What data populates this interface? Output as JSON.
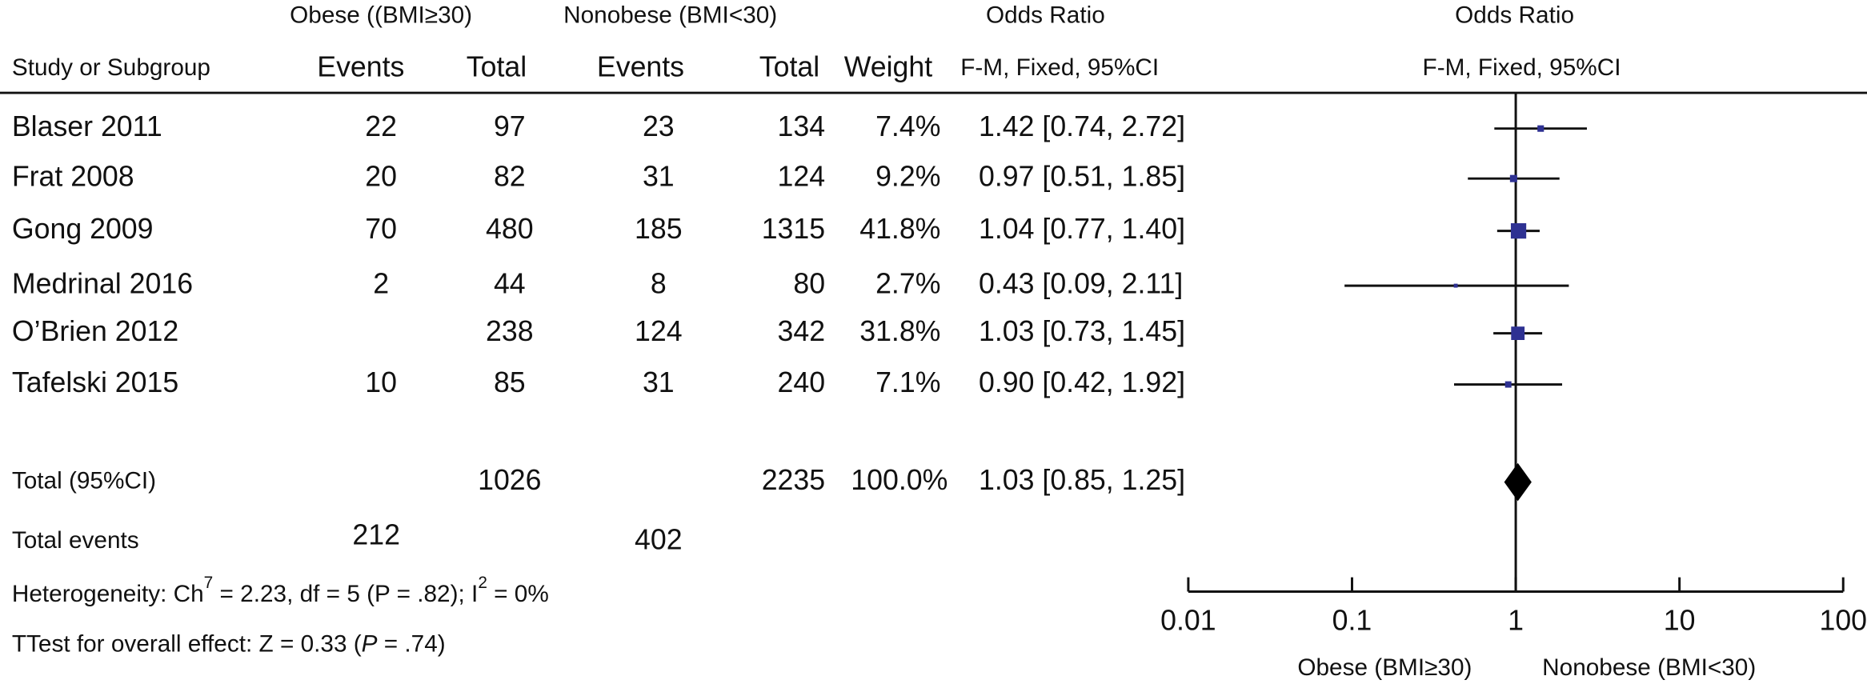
{
  "chart_data": {
    "type": "forest",
    "header": {
      "group1": "Obese ((BMI≥30)",
      "group2": "Nonobese (BMI<30)",
      "or_title": "Odds Ratio",
      "plot_title": "Odds Ratio",
      "study_col": "Study or Subgroup",
      "events1": "Events",
      "total1": "Total",
      "events2": "Events",
      "total2": "Total",
      "weight": "Weight",
      "method": "F-M, Fixed, 95%CI",
      "plot_method": "F-M, Fixed, 95%CI"
    },
    "categories": [
      "Blaser 2011",
      "Frat 2008",
      "Gong 2009",
      "Medrinal 2016",
      "O’Brien 2012",
      "Tafelski 2015"
    ],
    "events1": [
      22,
      20,
      70,
      2,
      null,
      10
    ],
    "total1": [
      97,
      82,
      480,
      44,
      238,
      85
    ],
    "events2": [
      23,
      31,
      185,
      8,
      124,
      31
    ],
    "total2": [
      134,
      124,
      1315,
      80,
      342,
      240
    ],
    "weights": [
      7.4,
      9.2,
      41.8,
      2.7,
      31.8,
      7.1
    ],
    "weight_labels": [
      "7.4%",
      "9.2%",
      "41.8%",
      "2.7%",
      "31.8%",
      "7.1%"
    ],
    "values": [
      1.42,
      0.97,
      1.04,
      0.43,
      1.03,
      0.9
    ],
    "lower": [
      0.74,
      0.51,
      0.77,
      0.09,
      0.73,
      0.42
    ],
    "upper": [
      2.72,
      1.85,
      1.4,
      2.11,
      1.45,
      1.92
    ],
    "value_labels": [
      "1.42 [0.74, 2.72]",
      "0.97 [0.51, 1.85]",
      "1.04 [0.77, 1.40]",
      "0.43 [0.09, 2.11]",
      "1.03 [0.73, 1.45]",
      "0.90 [0.42, 1.92]"
    ],
    "total": {
      "label": "Total (95%CI)",
      "total1": 1026,
      "total2": 2235,
      "weight": 100.0,
      "weight_label": "100.0%",
      "value": 1.03,
      "lower": 0.85,
      "upper": 1.25,
      "value_label": "1.03 [0.85, 1.25]"
    },
    "total_events": {
      "label": "Total events",
      "events1": 212,
      "events2": 402
    },
    "heterogeneity": [
      "Heterogeneity: Ch",
      "7",
      " = 2.23, df = 5 (P = .82); I",
      "2",
      " = 0%"
    ],
    "overall_effect": [
      "TTest for overall effect: Z = 0.33 (",
      "P",
      " = .74)"
    ],
    "xlim": [
      0.01,
      100
    ],
    "xticks": [
      0.01,
      0.1,
      1,
      10,
      100
    ],
    "log_scale": true,
    "xlabel_left": "Obese (BMI≥30)",
    "xlabel_right": "Nonobese (BMI<30)",
    "color": "#2e3192"
  }
}
